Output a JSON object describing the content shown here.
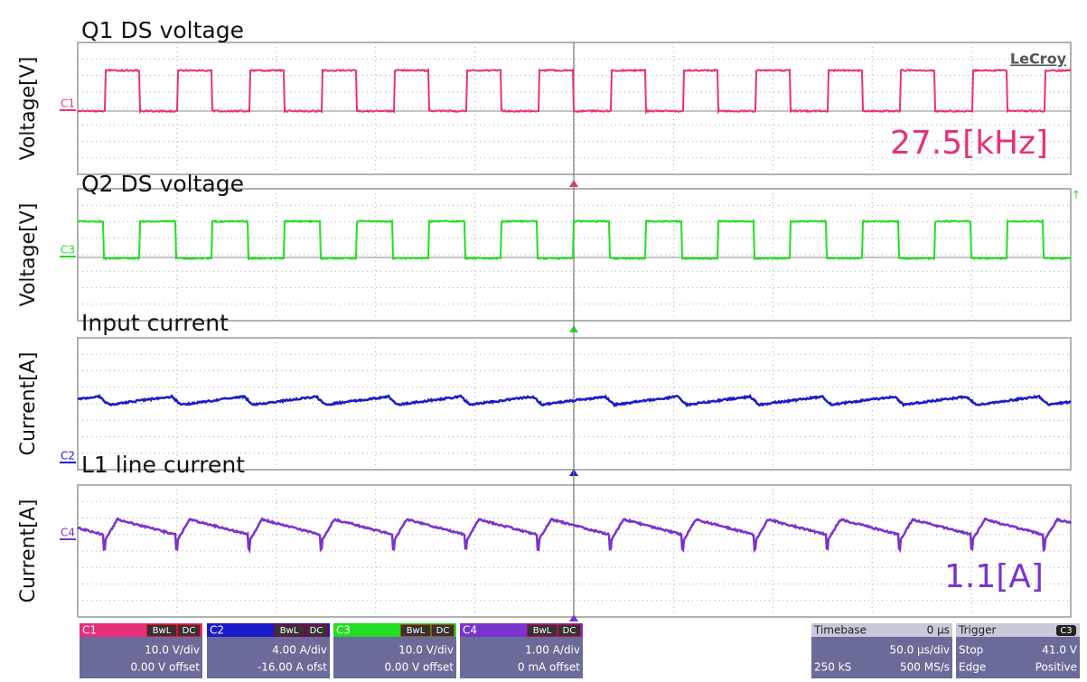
{
  "brand": "LeCroy",
  "panels": [
    {
      "title": "Q1 DS voltage",
      "ylabel": "Voltage[V]",
      "channel": "C1"
    },
    {
      "title": "Q2 DS voltage",
      "ylabel": "Voltage[V]",
      "channel": "C3"
    },
    {
      "title": "Input current",
      "ylabel": "Current[A]",
      "channel": "C2"
    },
    {
      "title": "L1 line current",
      "ylabel": "Current[A]",
      "channel": "C4"
    }
  ],
  "annotations": [
    "27.5[kHz]",
    "1.1[A]"
  ],
  "channels": [
    {
      "name": "C1",
      "badges": [
        "BwL",
        "DC"
      ],
      "scale": "10.0 V/div",
      "offset": "0.00 V offset"
    },
    {
      "name": "C2",
      "badges": [
        "BwL",
        "DC"
      ],
      "scale": "4.00 A/div",
      "offset": "-16.00 A ofst"
    },
    {
      "name": "C3",
      "badges": [
        "BwL",
        "DC"
      ],
      "scale": "10.0 V/div",
      "offset": "0.00 V offset"
    },
    {
      "name": "C4",
      "badges": [
        "BwL",
        "DC"
      ],
      "scale": "1.00 A/div",
      "offset": "0 mA offset"
    }
  ],
  "timebase": {
    "label": "Timebase",
    "delay": "0 µs",
    "scale": "50.0 µs/div",
    "samples": "250 kS",
    "rate": "500 MS/s"
  },
  "trigger": {
    "label": "Trigger",
    "source": "C3",
    "mode": "Stop",
    "level": "41.0 V",
    "type": "Edge",
    "slope": "Positive"
  }
}
